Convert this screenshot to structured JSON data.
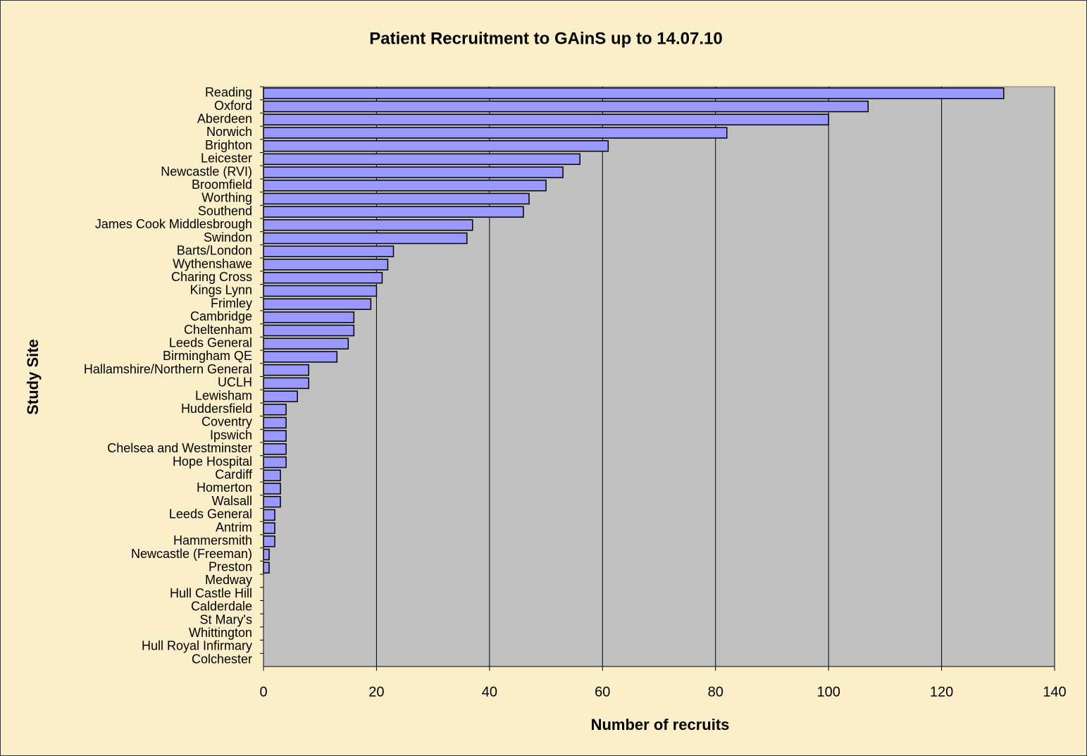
{
  "chart_data": {
    "type": "bar",
    "orientation": "horizontal",
    "title": "Patient Recruitment to GAinS up to 14.07.10",
    "x_label": "Number of recruits",
    "y_label": "Study Site",
    "categories": [
      "Reading",
      "Oxford",
      "Aberdeen",
      "Norwich",
      "Brighton",
      "Leicester",
      "Newcastle (RVI)",
      "Broomfield",
      "Worthing",
      "Southend",
      "James Cook Middlesbrough",
      "Swindon",
      "Barts/London",
      "Wythenshawe",
      "Charing Cross",
      "Kings Lynn",
      "Frimley",
      "Cambridge",
      "Cheltenham",
      "Leeds General",
      "Birmingham QE",
      "Hallamshire/Northern General",
      "UCLH",
      "Lewisham",
      "Huddersfield",
      "Coventry",
      "Ipswich",
      "Chelsea and Westminster",
      "Hope Hospital",
      "Cardiff",
      "Homerton",
      "Walsall",
      "Leeds General",
      "Antrim",
      "Hammersmith",
      "Newcastle (Freeman)",
      "Preston",
      "Medway",
      "Hull Castle Hill",
      "Calderdale",
      "St Mary's",
      "Whittington",
      "Hull Royal Infirmary",
      "Colchester"
    ],
    "values": [
      131,
      107,
      100,
      82,
      61,
      56,
      53,
      50,
      47,
      46,
      37,
      36,
      23,
      22,
      21,
      20,
      19,
      16,
      16,
      15,
      13,
      8,
      8,
      6,
      4,
      4,
      4,
      4,
      4,
      3,
      3,
      3,
      2,
      2,
      2,
      1,
      1,
      0,
      0,
      0,
      0,
      0,
      0,
      0
    ],
    "color": "#9999ff",
    "xlim": [
      0,
      140
    ],
    "xticks": [
      0,
      20,
      40,
      60,
      80,
      100,
      120,
      140
    ],
    "grid": true
  }
}
